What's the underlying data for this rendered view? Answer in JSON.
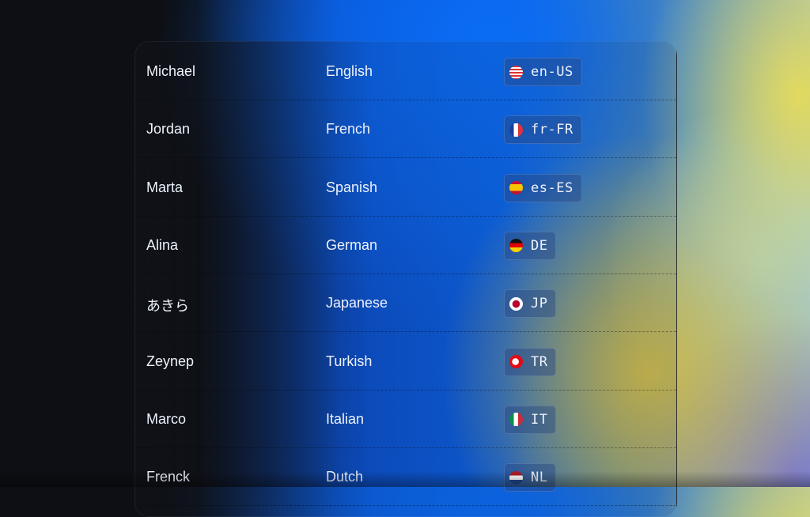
{
  "rows": [
    {
      "name": "Michael",
      "language": "English",
      "code": "en-US",
      "flag": "us-flag-icon"
    },
    {
      "name": "Jordan",
      "language": "French",
      "code": "fr-FR",
      "flag": "fr-flag-icon"
    },
    {
      "name": "Marta",
      "language": "Spanish",
      "code": "es-ES",
      "flag": "es-flag-icon"
    },
    {
      "name": "Alina",
      "language": "German",
      "code": "DE",
      "flag": "de-flag-icon"
    },
    {
      "name": "あきら",
      "language": "Japanese",
      "code": "JP",
      "flag": "jp-flag-icon"
    },
    {
      "name": "Zeynep",
      "language": "Turkish",
      "code": "TR",
      "flag": "tr-flag-icon"
    },
    {
      "name": "Marco",
      "language": "Italian",
      "code": "IT",
      "flag": "it-flag-icon"
    },
    {
      "name": "Frenck",
      "language": "Dutch",
      "code": "NL",
      "flag": "nl-flag-icon"
    }
  ]
}
